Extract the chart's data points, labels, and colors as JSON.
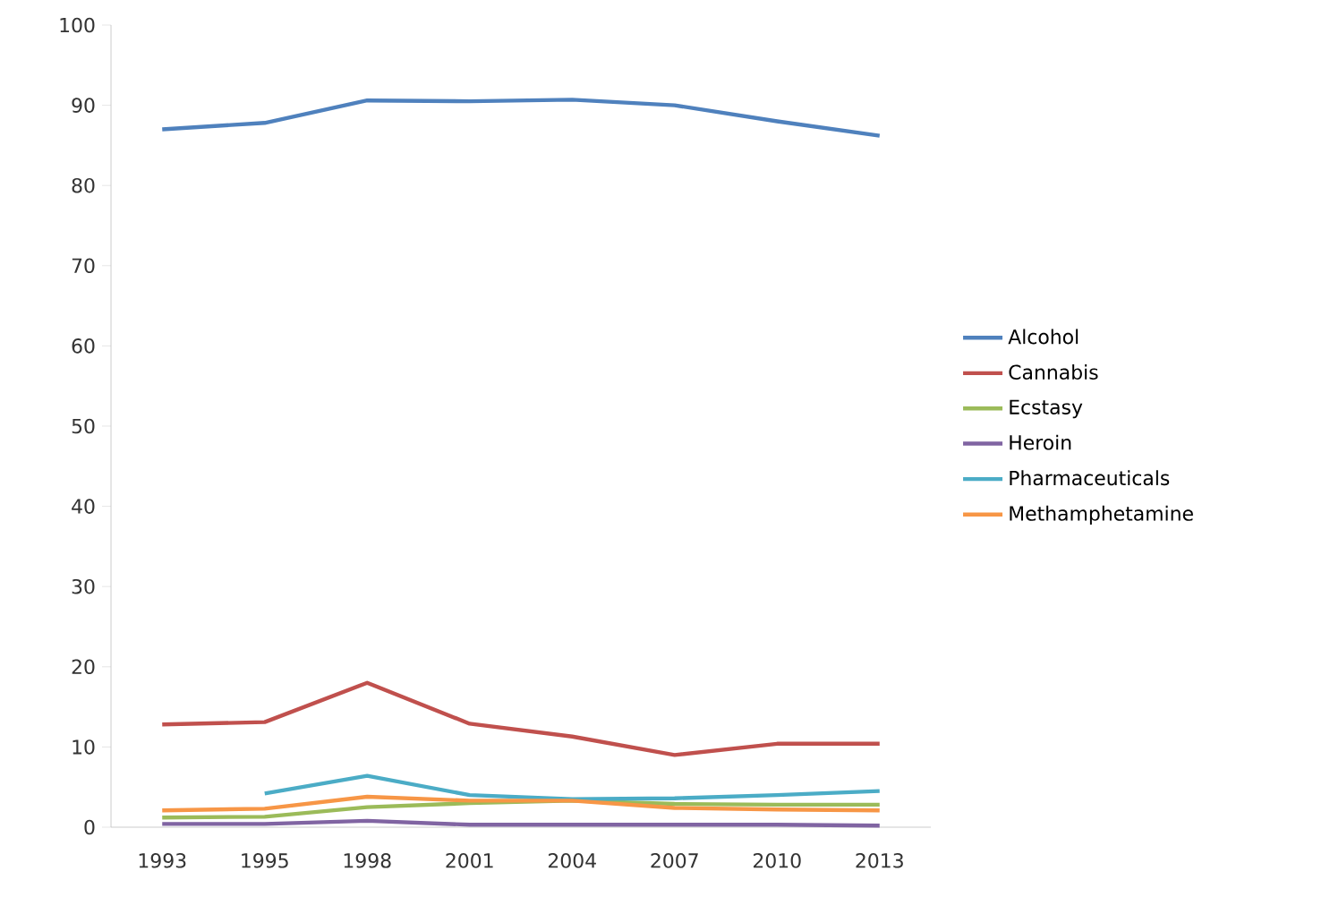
{
  "chart_data": {
    "type": "line",
    "categories": [
      "1993",
      "1995",
      "1998",
      "2001",
      "2004",
      "2007",
      "2010",
      "2013"
    ],
    "ylim": [
      0,
      100
    ],
    "yticks": [
      0,
      10,
      20,
      30,
      40,
      50,
      60,
      70,
      80,
      90,
      100
    ],
    "grid": false,
    "legend": "right",
    "marker": "none",
    "series": [
      {
        "name": "Alcohol",
        "color": "#4f81bd",
        "values": [
          87,
          87.8,
          90.6,
          90.5,
          90.7,
          90,
          88,
          86.2
        ]
      },
      {
        "name": "Cannabis",
        "color": "#c0504d",
        "values": [
          12.8,
          13.1,
          18,
          12.9,
          11.3,
          9,
          10.4,
          10.4
        ]
      },
      {
        "name": "Ecstasy",
        "color": "#9bbb59",
        "values": [
          1.2,
          1.3,
          2.5,
          3,
          3.3,
          2.9,
          2.8,
          2.8
        ]
      },
      {
        "name": "Heroin",
        "color": "#8064a2",
        "values": [
          0.4,
          0.4,
          0.8,
          0.3,
          0.3,
          0.3,
          0.3,
          0.2
        ]
      },
      {
        "name": "Pharmaceuticals",
        "color": "#4bacc6",
        "values": [
          null,
          4.2,
          6.4,
          4,
          3.5,
          3.6,
          4,
          4.5
        ]
      },
      {
        "name": "Methamphetamine",
        "color": "#f79646",
        "values": [
          2.1,
          2.3,
          3.8,
          3.3,
          3.3,
          2.4,
          2.2,
          2.1
        ]
      }
    ]
  }
}
